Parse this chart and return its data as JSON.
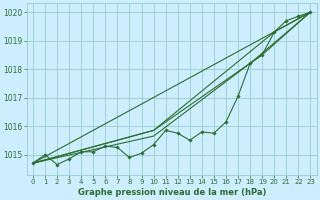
{
  "title": "Graphe pression niveau de la mer (hPa)",
  "bg_color": "#cceeff",
  "grid_color": "#99cccc",
  "line_color": "#2d6e2d",
  "marker_color": "#2d6e2d",
  "ylim": [
    1014.3,
    1020.3
  ],
  "yticks": [
    1015,
    1016,
    1017,
    1018,
    1019,
    1020
  ],
  "xlim": [
    -0.5,
    23.5
  ],
  "xticks": [
    0,
    1,
    2,
    3,
    4,
    5,
    6,
    7,
    8,
    9,
    10,
    11,
    12,
    13,
    14,
    15,
    16,
    17,
    18,
    19,
    20,
    21,
    22,
    23
  ],
  "series1": [
    1014.7,
    1015.0,
    1014.65,
    1014.85,
    1015.1,
    1015.1,
    1015.3,
    1015.25,
    1014.9,
    1015.05,
    1015.35,
    1015.85,
    1015.75,
    1015.5,
    1015.8,
    1015.75,
    1016.15,
    1017.05,
    1018.2,
    1018.5,
    1019.3,
    1019.7,
    1019.85,
    1020.0
  ],
  "series2_x": [
    0,
    23
  ],
  "series2_y": [
    1014.7,
    1020.0
  ],
  "series3_x": [
    0,
    10,
    18,
    23
  ],
  "series3_y": [
    1014.7,
    1015.65,
    1018.2,
    1020.0
  ],
  "series4_x": [
    0,
    10,
    19,
    23
  ],
  "series4_y": [
    1014.7,
    1015.85,
    1018.5,
    1020.0
  ],
  "series5_x": [
    0,
    10,
    20,
    23
  ],
  "series5_y": [
    1014.7,
    1015.85,
    1019.3,
    1020.0
  ]
}
